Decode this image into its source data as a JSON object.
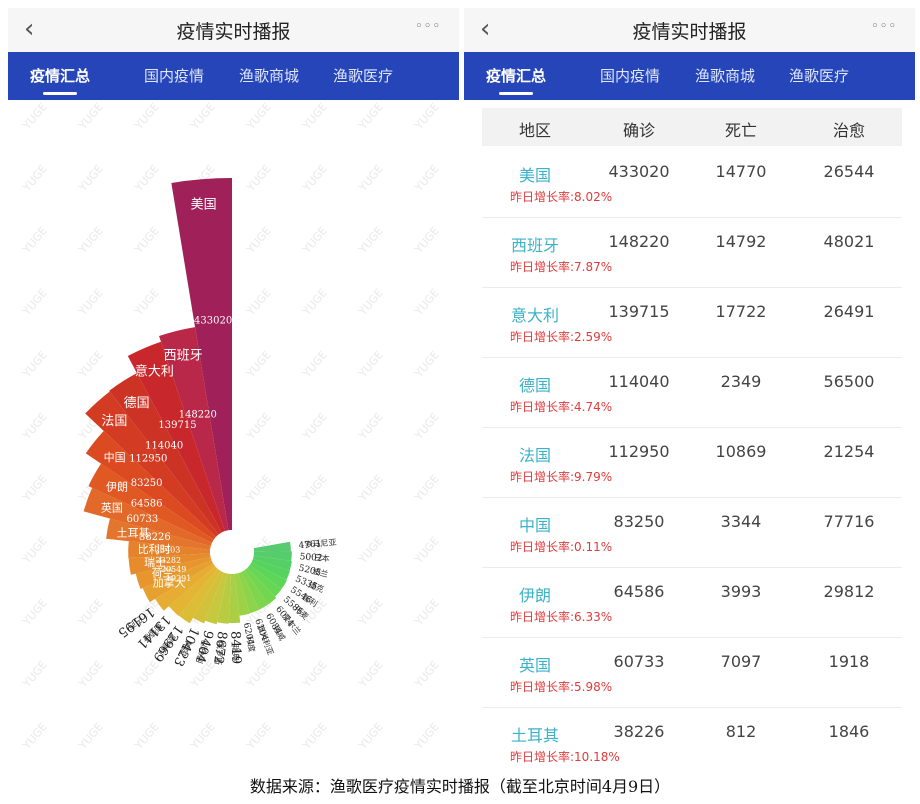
{
  "header": {
    "back_glyph": "‹",
    "title": "疫情实时播报",
    "more_glyph": "◦◦◦"
  },
  "tabs": [
    {
      "label": "疫情汇总",
      "active": true
    },
    {
      "label": "国内疫情",
      "active": false
    },
    {
      "label": "渔歌商城",
      "active": false
    },
    {
      "label": "渔歌医疗",
      "active": false
    }
  ],
  "watermark": "YUGE",
  "chart_data": {
    "type": "nightingale-rose",
    "title": "",
    "categories": [
      "美国",
      "西班牙",
      "意大利",
      "德国",
      "法国",
      "中国",
      "伊朗",
      "英国",
      "土耳其",
      "比利时",
      "瑞士",
      "荷兰",
      "加拿大",
      "巴西",
      "葡萄牙",
      "奥地利",
      "韩国",
      "以色列",
      "俄罗斯",
      "瑞典",
      "印度",
      "澳大利亚",
      "挪威",
      "爱尔兰",
      "丹麦",
      "智利",
      "捷克",
      "波兰",
      "日本",
      "罗马尼亚"
    ],
    "values": [
      433020,
      148220,
      139715,
      114040,
      112950,
      83250,
      64586,
      60733,
      38226,
      23403,
      23282,
      20549,
      19291,
      16195,
      13141,
      12969,
      10423,
      9404,
      8672,
      8419,
      6204,
      6104,
      6084,
      6074,
      5586,
      5546,
      5335,
      5205,
      5002,
      4761
    ],
    "colors": [
      "#a0215a",
      "#b92848",
      "#c8282c",
      "#cc3325",
      "#d33b23",
      "#dc4a22",
      "#e05822",
      "#e2692a",
      "#e3762c",
      "#e5822c",
      "#e68c2d",
      "#e7962e",
      "#e6a02f",
      "#e6ac33",
      "#e4b535",
      "#dcbd38",
      "#d2c23b",
      "#c6c83e",
      "#b9cc41",
      "#aacf44",
      "#9bd247",
      "#8dd44a",
      "#7fd54d",
      "#72d650",
      "#66d654",
      "#5cd559",
      "#56d35e",
      "#54d064",
      "#55cd6a",
      "#58ca70"
    ]
  },
  "table": {
    "headers": [
      "地区",
      "确诊",
      "死亡",
      "治愈"
    ],
    "growth_label": "昨日增长率:",
    "rows": [
      {
        "region": "美国",
        "confirmed": "433020",
        "deaths": "14770",
        "recovered": "26544",
        "growth": "8.02%"
      },
      {
        "region": "西班牙",
        "confirmed": "148220",
        "deaths": "14792",
        "recovered": "48021",
        "growth": "7.87%"
      },
      {
        "region": "意大利",
        "confirmed": "139715",
        "deaths": "17722",
        "recovered": "26491",
        "growth": "2.59%"
      },
      {
        "region": "德国",
        "confirmed": "114040",
        "deaths": "2349",
        "recovered": "56500",
        "growth": "4.74%"
      },
      {
        "region": "法国",
        "confirmed": "112950",
        "deaths": "10869",
        "recovered": "21254",
        "growth": "9.79%"
      },
      {
        "region": "中国",
        "confirmed": "83250",
        "deaths": "3344",
        "recovered": "77716",
        "growth": "0.11%"
      },
      {
        "region": "伊朗",
        "confirmed": "64586",
        "deaths": "3993",
        "recovered": "29812",
        "growth": "6.33%"
      },
      {
        "region": "英国",
        "confirmed": "60733",
        "deaths": "7097",
        "recovered": "1918",
        "growth": "5.98%"
      },
      {
        "region": "土耳其",
        "confirmed": "38226",
        "deaths": "812",
        "recovered": "1846",
        "growth": "10.18%"
      }
    ]
  },
  "source_text": "数据来源：渔歌医疗疫情实时播报（截至北京时间4月9日）"
}
